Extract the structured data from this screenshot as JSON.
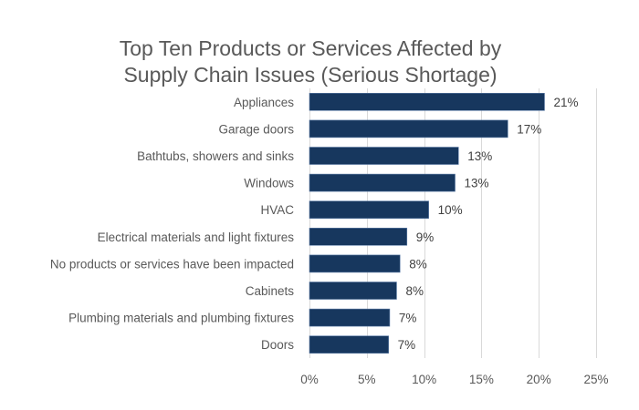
{
  "chart_data": {
    "type": "bar",
    "orientation": "horizontal",
    "title": "Top Ten Products or Services Affected by Supply Chain Issues (Serious Shortage)",
    "title_lines": [
      "Top Ten Products or Services Affected by",
      "Supply Chain Issues (Serious Shortage)"
    ],
    "xlabel": "",
    "ylabel": "",
    "categories": [
      "Appliances",
      "Garage doors",
      "Bathtubs, showers and sinks",
      "Windows",
      "HVAC",
      "Electrical materials and light fixtures",
      "No products or services have been impacted",
      "Cabinets",
      "Plumbing materials and plumbing fixtures",
      "Doors"
    ],
    "values": [
      20.5,
      17.3,
      13.0,
      12.7,
      10.4,
      8.5,
      7.9,
      7.6,
      7.0,
      6.9
    ],
    "data_labels": [
      "21%",
      "17%",
      "13%",
      "13%",
      "10%",
      "9%",
      "8%",
      "8%",
      "7%",
      "7%"
    ],
    "xlim": [
      0,
      25
    ],
    "x_ticks": [
      0,
      5,
      10,
      15,
      20,
      25
    ],
    "x_tick_labels": [
      "0%",
      "5%",
      "10%",
      "15%",
      "20%",
      "25%"
    ],
    "grid": "vertical",
    "legend": "none",
    "bar_color": "#17375e",
    "bar_edge_color": "#5b7ba6",
    "grid_color": "#d9d9d9"
  }
}
